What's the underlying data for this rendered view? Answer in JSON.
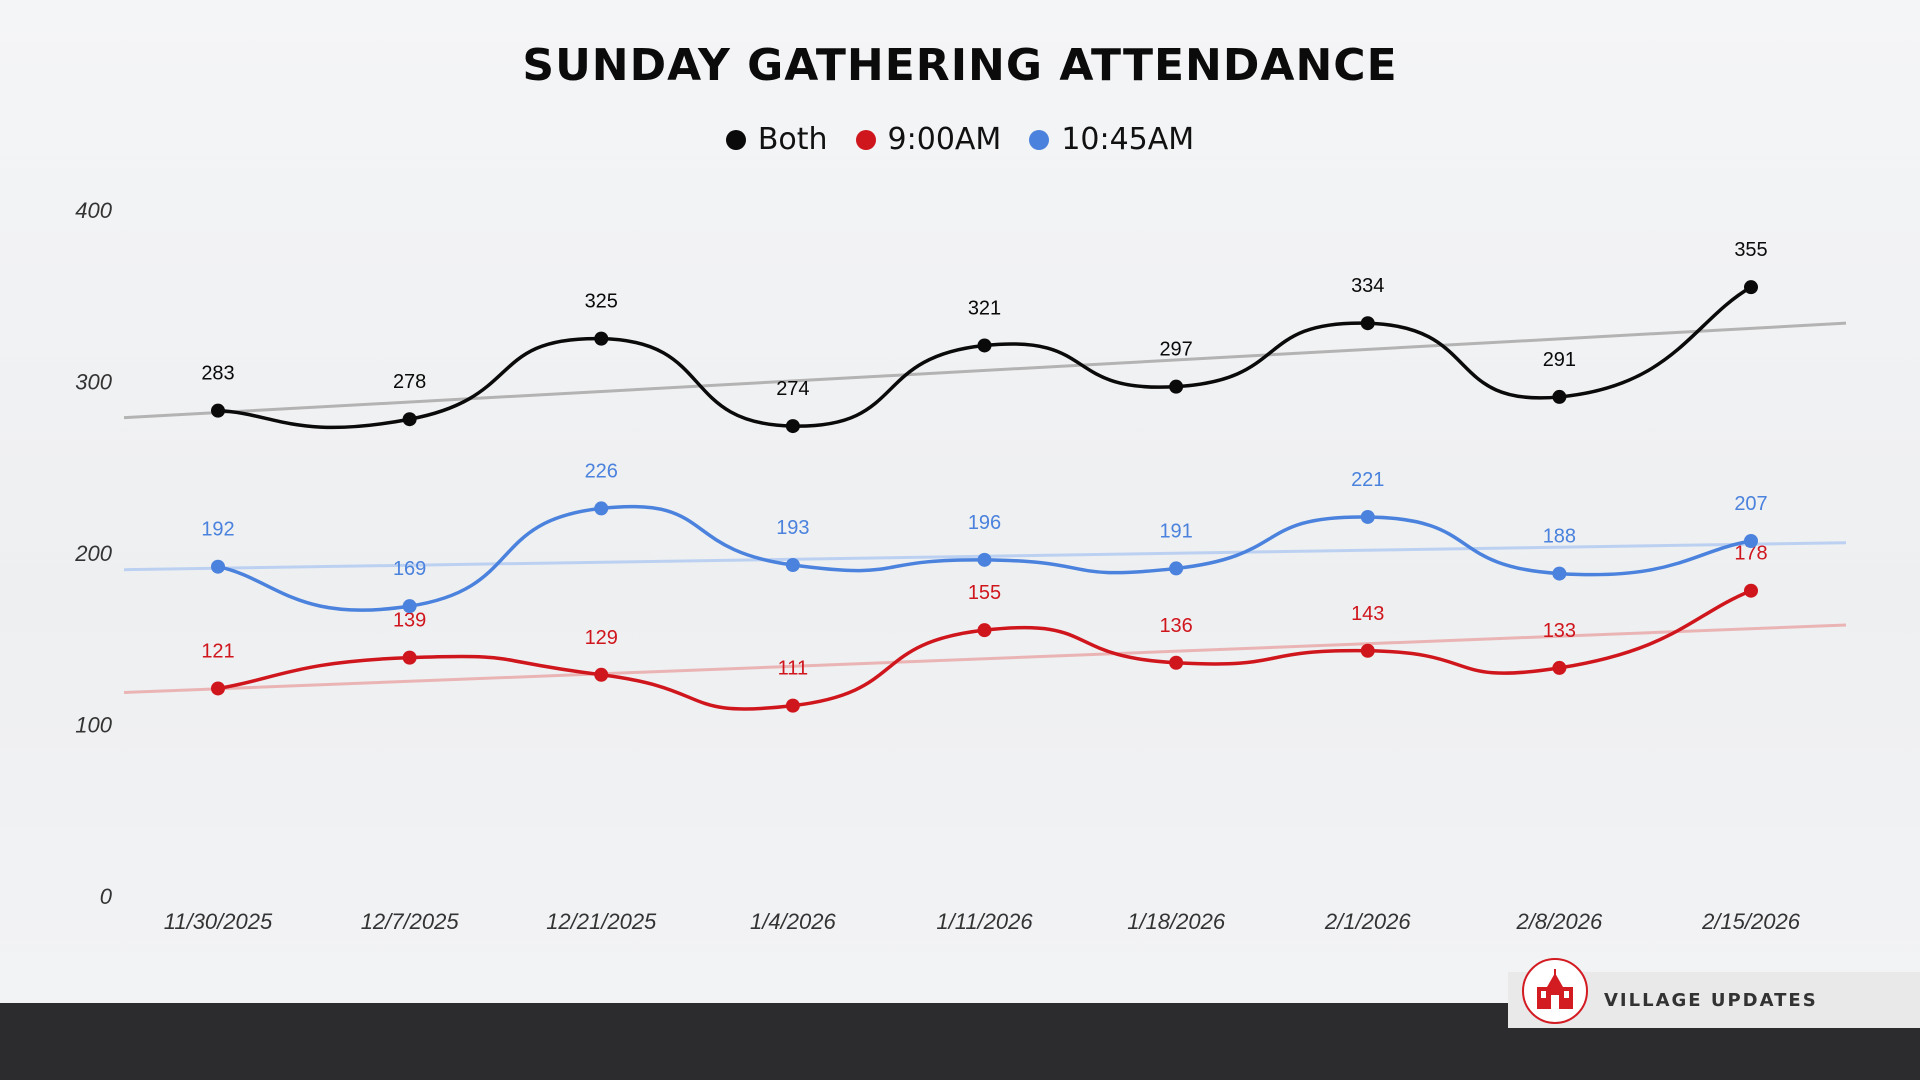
{
  "chart_data": {
    "type": "line",
    "title": "SUNDAY GATHERING ATTENDANCE",
    "categories": [
      "11/30/2025",
      "12/7/2025",
      "12/21/2025",
      "1/4/2026",
      "1/11/2026",
      "1/18/2026",
      "2/1/2026",
      "2/8/2026",
      "2/15/2026"
    ],
    "y_ticks": [
      "0",
      "100",
      "200",
      "300",
      "400"
    ],
    "ylim": [
      0,
      400
    ],
    "xlabel": "",
    "ylabel": "",
    "legend_position": "top-center",
    "trendlines": true,
    "series": [
      {
        "name": "Both",
        "color": "#0a0a0a",
        "trend_color": "#b3b3b3",
        "values": [
          283,
          278,
          325,
          274,
          321,
          297,
          334,
          291,
          355
        ]
      },
      {
        "name": "9:00AM",
        "color": "#d0161d",
        "trend_color": "#eab4b4",
        "values": [
          121,
          139,
          129,
          111,
          155,
          136,
          143,
          133,
          178
        ]
      },
      {
        "name": "10:45AM",
        "color": "#4a82dd",
        "trend_color": "#bcd1f1",
        "values": [
          192,
          169,
          226,
          193,
          196,
          191,
          221,
          188,
          207
        ]
      }
    ]
  },
  "brand": {
    "name": "VILLAGE UPDATES",
    "logo_icon": "church-logo-icon",
    "accent": "#d31b22"
  }
}
